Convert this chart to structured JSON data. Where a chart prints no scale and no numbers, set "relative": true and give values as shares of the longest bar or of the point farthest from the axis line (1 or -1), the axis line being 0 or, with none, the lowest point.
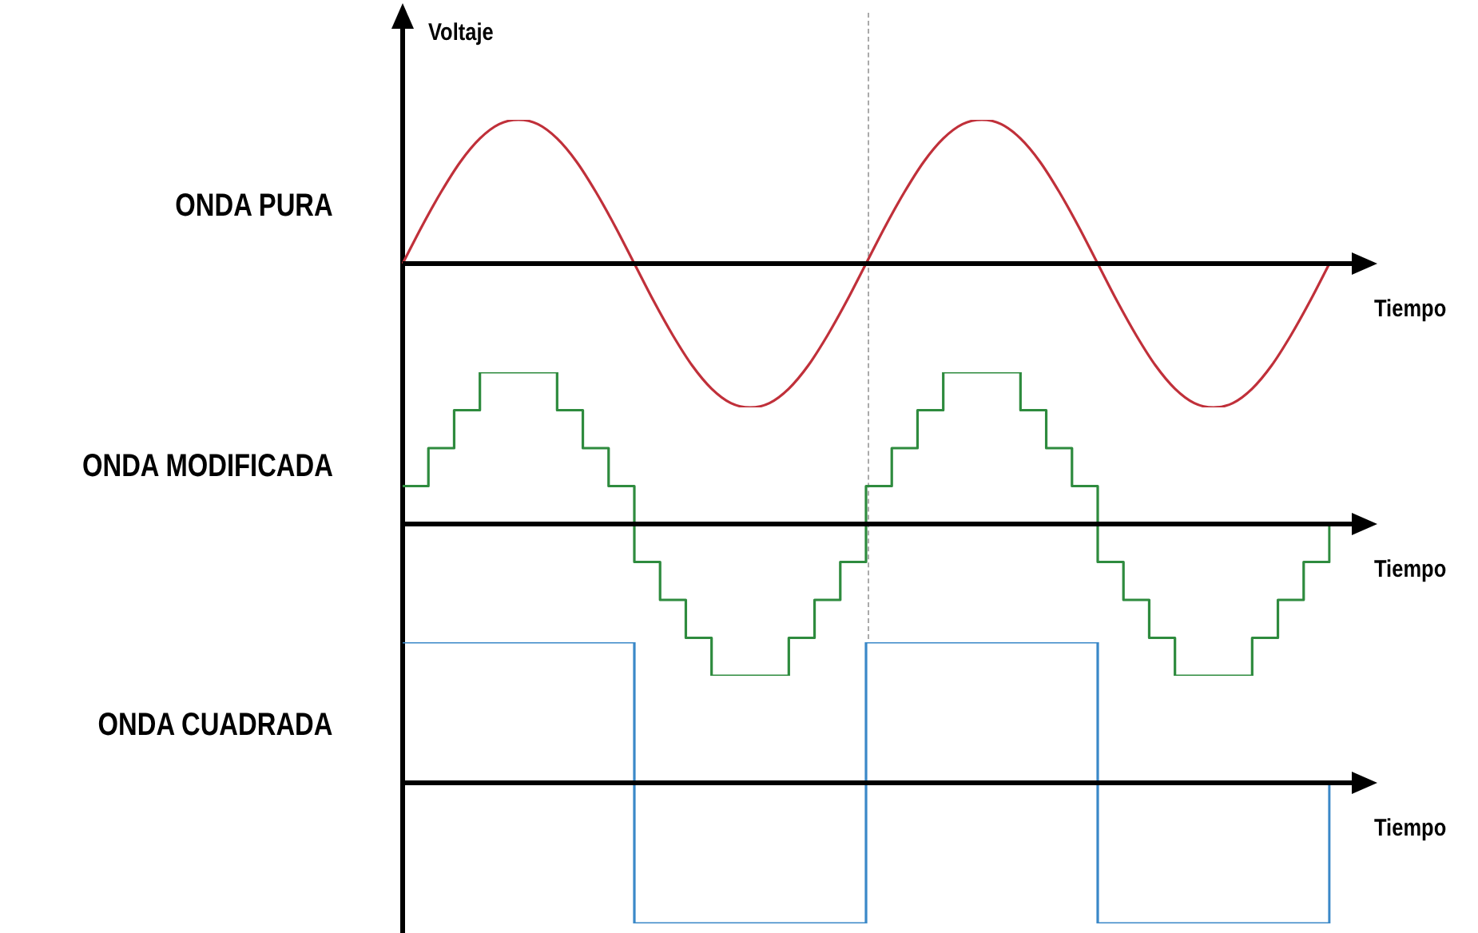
{
  "chart_data": [
    {
      "type": "line",
      "title": "ONDA PURA",
      "ylabel": "Voltaje",
      "xlabel": "Tiempo",
      "relative": true,
      "marker": "none",
      "categories": [
        null,
        null,
        null,
        null,
        null,
        null,
        null,
        null,
        null,
        null,
        null,
        null,
        null,
        null,
        null,
        null,
        null,
        null,
        null,
        null,
        null,
        null,
        null,
        null,
        null,
        null,
        null,
        null,
        null,
        null,
        null,
        null,
        null,
        null,
        null,
        null,
        null,
        null,
        null,
        null,
        null,
        null,
        null,
        null,
        null,
        null,
        null,
        null,
        null
      ],
      "series": [
        {
          "color": "#c0303a",
          "values": [
            0,
            0.26,
            0.5,
            0.71,
            0.87,
            0.97,
            1,
            0.97,
            0.87,
            0.71,
            0.5,
            0.26,
            0,
            -0.26,
            -0.5,
            -0.71,
            -0.87,
            -0.97,
            -1,
            -0.97,
            -0.87,
            -0.71,
            -0.5,
            -0.26,
            0,
            0.26,
            0.5,
            0.71,
            0.87,
            0.97,
            1,
            0.97,
            0.87,
            0.71,
            0.5,
            0.26,
            0,
            -0.26,
            -0.5,
            -0.71,
            -0.87,
            -0.97,
            -1,
            -0.97,
            -0.87,
            -0.71,
            -0.5,
            -0.26,
            0
          ]
        }
      ]
    },
    {
      "type": "step",
      "title": "ONDA MODIFICADA",
      "xlabel": "Tiempo",
      "relative": true,
      "marker": "none",
      "categories": [
        null,
        null,
        null,
        null,
        null,
        null,
        null,
        null,
        null,
        null,
        null,
        null,
        null,
        null,
        null,
        null,
        null,
        null,
        null,
        null,
        null,
        null,
        null,
        null,
        null,
        null,
        null,
        null,
        null,
        null,
        null,
        null,
        null,
        null,
        null,
        null,
        null
      ],
      "series": [
        {
          "color": "#2e8b3e",
          "values": [
            0.25,
            0.5,
            0.75,
            1,
            1,
            1,
            0.75,
            0.5,
            0.25,
            -0.25,
            -0.5,
            -0.75,
            -1,
            -1,
            -1,
            -0.75,
            -0.5,
            -0.25,
            0.25,
            0.5,
            0.75,
            1,
            1,
            1,
            0.75,
            0.5,
            0.25,
            -0.25,
            -0.5,
            -0.75,
            -1,
            -1,
            -1,
            -0.75,
            -0.5,
            -0.25,
            0
          ]
        }
      ]
    },
    {
      "type": "step",
      "title": "ONDA CUADRADA",
      "xlabel": "Tiempo",
      "relative": true,
      "marker": "none",
      "categories": [
        null,
        null,
        null,
        null,
        null
      ],
      "series": [
        {
          "color": "#3a88c8",
          "values": [
            1,
            -1,
            1,
            -1,
            0
          ]
        }
      ]
    }
  ]
}
